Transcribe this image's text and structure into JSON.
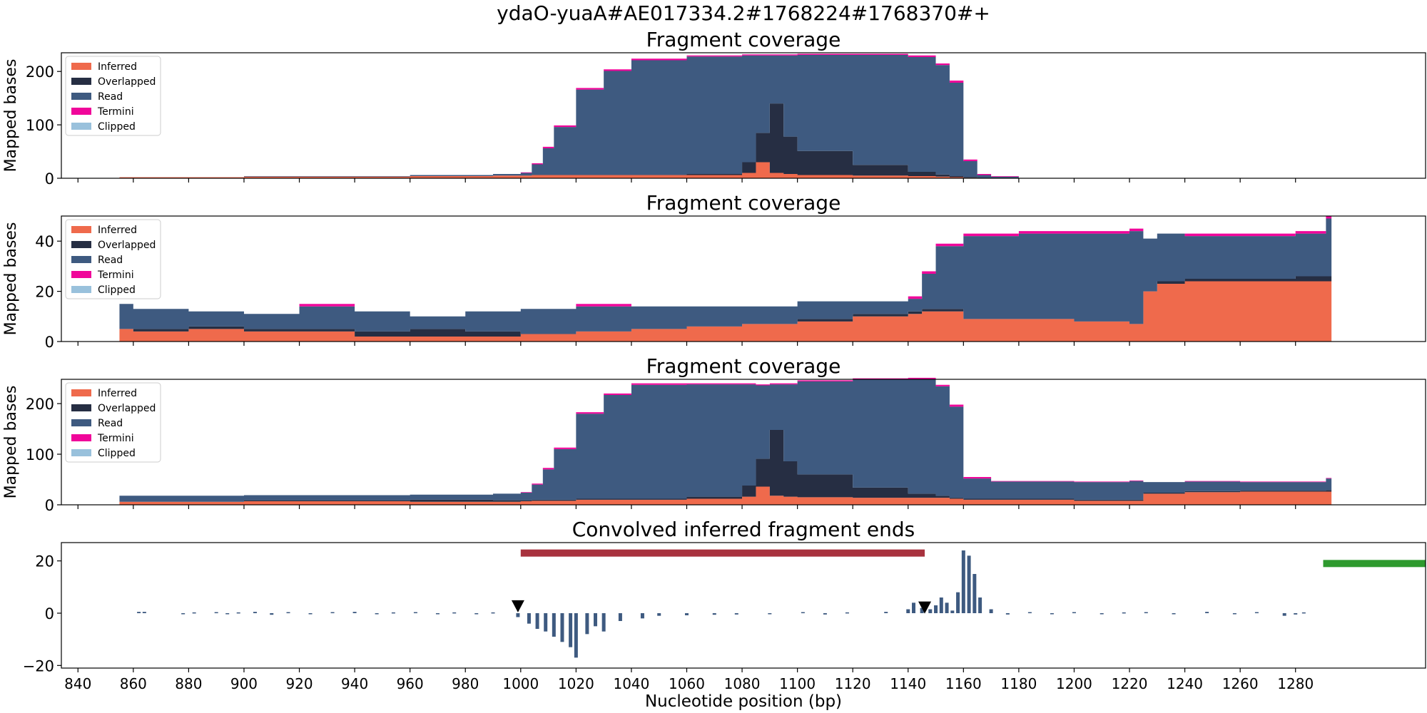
{
  "figure_title": "ydaO-yuaA#AE017334.2#1768224#1768370#+",
  "xlabel": "Nucleotide position (bp)",
  "x_ticks": [
    840,
    860,
    880,
    900,
    920,
    940,
    960,
    980,
    1000,
    1020,
    1040,
    1060,
    1080,
    1100,
    1120,
    1140,
    1160,
    1180,
    1200,
    1220,
    1240,
    1260,
    1280
  ],
  "x_range": [
    834,
    1327
  ],
  "colors": {
    "inferred": "#ef6a4c",
    "overlapped": "#262e43",
    "read": "#3e5a80",
    "termini": "#f0069a",
    "clipped": "#99c1dc",
    "red_bar": "#a8323e",
    "green_bar": "#2e9a2e",
    "signal": "#3e5a80"
  },
  "chart_data": [
    {
      "type": "area",
      "title": "Fragment coverage",
      "ylabel": "Mapped bases",
      "ylim": [
        0,
        235
      ],
      "yticks": [
        0,
        100,
        200
      ],
      "legend": [
        "Inferred",
        "Overlapped",
        "Read",
        "Termini",
        "Clipped"
      ],
      "legend_placement": "upper-left",
      "stacked": true,
      "x": [
        855,
        900,
        960,
        990,
        1000,
        1004,
        1008,
        1012,
        1020,
        1030,
        1040,
        1060,
        1080,
        1085,
        1090,
        1095,
        1100,
        1120,
        1140,
        1150,
        1155,
        1160,
        1165,
        1170,
        1180
      ],
      "series": [
        {
          "name": "Inferred",
          "values": [
            2,
            3,
            4,
            5,
            5,
            6,
            6,
            6,
            6,
            6,
            6,
            6,
            10,
            30,
            10,
            8,
            6,
            5,
            4,
            3,
            2,
            1,
            0,
            0,
            0
          ]
        },
        {
          "name": "Overlapped",
          "values": [
            0,
            0,
            0,
            0,
            0,
            0,
            0,
            0,
            0,
            0,
            0,
            2,
            20,
            55,
            130,
            70,
            45,
            20,
            8,
            4,
            2,
            1,
            0,
            0,
            0
          ]
        },
        {
          "name": "Read",
          "values": [
            0,
            1,
            2,
            3,
            5,
            20,
            50,
            90,
            160,
            195,
            215,
            220,
            200,
            145,
            90,
            152,
            180,
            206,
            215,
            205,
            175,
            30,
            6,
            3,
            0
          ]
        },
        {
          "name": "Termini",
          "values": [
            0,
            0,
            0,
            0,
            1,
            2,
            3,
            3,
            3,
            3,
            3,
            2,
            2,
            2,
            2,
            2,
            2,
            2,
            3,
            3,
            4,
            3,
            2,
            1,
            0
          ]
        },
        {
          "name": "Clipped",
          "values": [
            0,
            0,
            0,
            0,
            0,
            0,
            0,
            0,
            0,
            0,
            0,
            0,
            0,
            0,
            0,
            0,
            0,
            0,
            0,
            0,
            0,
            0,
            0,
            0,
            0
          ]
        }
      ]
    },
    {
      "type": "area",
      "title": "Fragment coverage",
      "ylabel": "Mapped bases",
      "ylim": [
        0,
        50
      ],
      "yticks": [
        0,
        20,
        40
      ],
      "legend": [
        "Inferred",
        "Overlapped",
        "Read",
        "Termini",
        "Clipped"
      ],
      "legend_placement": "upper-left",
      "stacked": true,
      "x": [
        855,
        860,
        880,
        900,
        920,
        940,
        960,
        980,
        1000,
        1020,
        1040,
        1060,
        1080,
        1100,
        1120,
        1140,
        1145,
        1150,
        1160,
        1180,
        1200,
        1220,
        1225,
        1230,
        1240,
        1260,
        1280,
        1291
      ],
      "series": [
        {
          "name": "Inferred",
          "values": [
            5,
            4,
            5,
            4,
            4,
            2,
            2,
            2,
            3,
            4,
            5,
            6,
            7,
            8,
            10,
            11,
            12,
            12,
            9,
            9,
            8,
            7,
            20,
            23,
            24,
            24,
            24,
            24
          ]
        },
        {
          "name": "Overlapped",
          "values": [
            0,
            1,
            1,
            1,
            1,
            2,
            3,
            2,
            0,
            0,
            0,
            0,
            0,
            1,
            1,
            1,
            1,
            1,
            0,
            0,
            0,
            0,
            0,
            1,
            1,
            1,
            2,
            2
          ]
        },
        {
          "name": "Read",
          "values": [
            10,
            8,
            6,
            6,
            9,
            8,
            5,
            8,
            10,
            10,
            9,
            8,
            7,
            7,
            5,
            5,
            14,
            25,
            33,
            34,
            35,
            37,
            21,
            19,
            17,
            17,
            17,
            23
          ]
        },
        {
          "name": "Termini",
          "values": [
            0,
            0,
            0,
            0,
            1,
            0,
            0,
            0,
            0,
            1,
            0,
            0,
            0,
            0,
            0,
            1,
            1,
            1,
            1,
            1,
            1,
            1,
            0,
            0,
            1,
            1,
            1,
            1
          ]
        },
        {
          "name": "Clipped",
          "values": [
            0,
            0,
            0,
            0,
            0,
            0,
            0,
            0,
            0,
            0,
            0,
            0,
            0,
            0,
            0,
            0,
            0,
            0,
            0,
            0,
            0,
            0,
            0,
            0,
            0,
            0,
            0,
            0
          ]
        }
      ]
    },
    {
      "type": "area",
      "title": "Fragment coverage",
      "ylabel": "Mapped bases",
      "ylim": [
        0,
        248
      ],
      "yticks": [
        0,
        100,
        200
      ],
      "legend": [
        "Inferred",
        "Overlapped",
        "Read",
        "Termini",
        "Clipped"
      ],
      "legend_placement": "upper-left",
      "stacked": true,
      "x": [
        855,
        900,
        960,
        990,
        1000,
        1004,
        1008,
        1012,
        1020,
        1030,
        1040,
        1060,
        1080,
        1085,
        1090,
        1095,
        1100,
        1120,
        1140,
        1150,
        1155,
        1160,
        1170,
        1200,
        1220,
        1225,
        1240,
        1260,
        1280,
        1291
      ],
      "series": [
        {
          "name": "Inferred",
          "values": [
            6,
            7,
            6,
            6,
            7,
            8,
            8,
            8,
            10,
            10,
            10,
            12,
            16,
            36,
            18,
            16,
            15,
            14,
            14,
            14,
            12,
            10,
            10,
            8,
            8,
            22,
            25,
            26,
            26,
            26
          ]
        },
        {
          "name": "Overlapped",
          "values": [
            0,
            2,
            4,
            3,
            2,
            2,
            2,
            2,
            2,
            2,
            2,
            4,
            22,
            55,
            130,
            70,
            45,
            20,
            8,
            4,
            2,
            2,
            2,
            2,
            2,
            2,
            2,
            2,
            2,
            3
          ]
        },
        {
          "name": "Read",
          "values": [
            12,
            10,
            10,
            13,
            15,
            30,
            60,
            100,
            168,
            205,
            225,
            222,
            200,
            145,
            90,
            152,
            184,
            214,
            226,
            216,
            180,
            40,
            34,
            35,
            37,
            21,
            19,
            17,
            17,
            23
          ]
        },
        {
          "name": "Termini",
          "values": [
            0,
            0,
            0,
            0,
            1,
            2,
            3,
            3,
            3,
            3,
            3,
            2,
            2,
            2,
            2,
            2,
            2,
            2,
            3,
            3,
            4,
            3,
            1,
            1,
            1,
            0,
            1,
            1,
            1,
            1
          ]
        },
        {
          "name": "Clipped",
          "values": [
            0,
            0,
            0,
            0,
            0,
            0,
            0,
            0,
            0,
            0,
            0,
            0,
            0,
            0,
            0,
            0,
            0,
            0,
            0,
            0,
            0,
            0,
            0,
            0,
            0,
            0,
            0,
            0,
            0,
            0
          ]
        }
      ]
    },
    {
      "type": "bar",
      "title": "Convolved inferred fragment ends",
      "xlabel": "Nucleotide position (bp)",
      "ylim": [
        -21,
        27
      ],
      "yticks": [
        -20,
        0,
        20
      ],
      "series": [
        {
          "name": "",
          "x": [
            862,
            864,
            878,
            882,
            890,
            894,
            898,
            904,
            910,
            916,
            924,
            932,
            940,
            948,
            954,
            962,
            970,
            976,
            984,
            990,
            999,
            1003,
            1006,
            1009,
            1012,
            1015,
            1018,
            1020,
            1024,
            1027,
            1030,
            1036,
            1044,
            1050,
            1060,
            1070,
            1078,
            1090,
            1102,
            1110,
            1118,
            1132,
            1140,
            1142,
            1145,
            1148,
            1150,
            1152,
            1154,
            1156,
            1158,
            1160,
            1162,
            1164,
            1166,
            1170,
            1176,
            1184,
            1192,
            1200,
            1210,
            1218,
            1226,
            1236,
            1248,
            1258,
            1266,
            1276,
            1280,
            1283
          ],
          "values": [
            0.5,
            0.5,
            -0.3,
            0.3,
            0.4,
            -0.4,
            0.3,
            0.5,
            -0.6,
            0.4,
            -0.3,
            0.4,
            0.5,
            -0.4,
            0.3,
            0.4,
            -0.3,
            0.3,
            -0.4,
            0.3,
            -1.5,
            -4,
            -6,
            -7,
            -9,
            -11,
            -13,
            -17,
            -8,
            -5,
            -7,
            -3,
            -2,
            -1,
            -0.8,
            -0.6,
            -0.5,
            -0.4,
            0.4,
            -0.5,
            0.3,
            0.5,
            1.5,
            4,
            2,
            1.5,
            3,
            6,
            4,
            1,
            8,
            24,
            22,
            15,
            6,
            1.5,
            -0.5,
            0.4,
            -0.3,
            0.4,
            -0.3,
            0.3,
            0.4,
            -0.3,
            0.5,
            -0.4,
            0.4,
            -1,
            -0.5,
            0.3
          ]
        }
      ],
      "markers": [
        {
          "shape": "triangle-down",
          "x": 999,
          "y": 2.5
        },
        {
          "shape": "triangle-down",
          "x": 1146,
          "y": 2
        }
      ],
      "spans": [
        {
          "x0": 1000,
          "x1": 1146,
          "y": 23,
          "color": "red_bar"
        },
        {
          "x0": 1290,
          "x1": 1327,
          "y": 19,
          "color": "green_bar"
        }
      ]
    }
  ]
}
